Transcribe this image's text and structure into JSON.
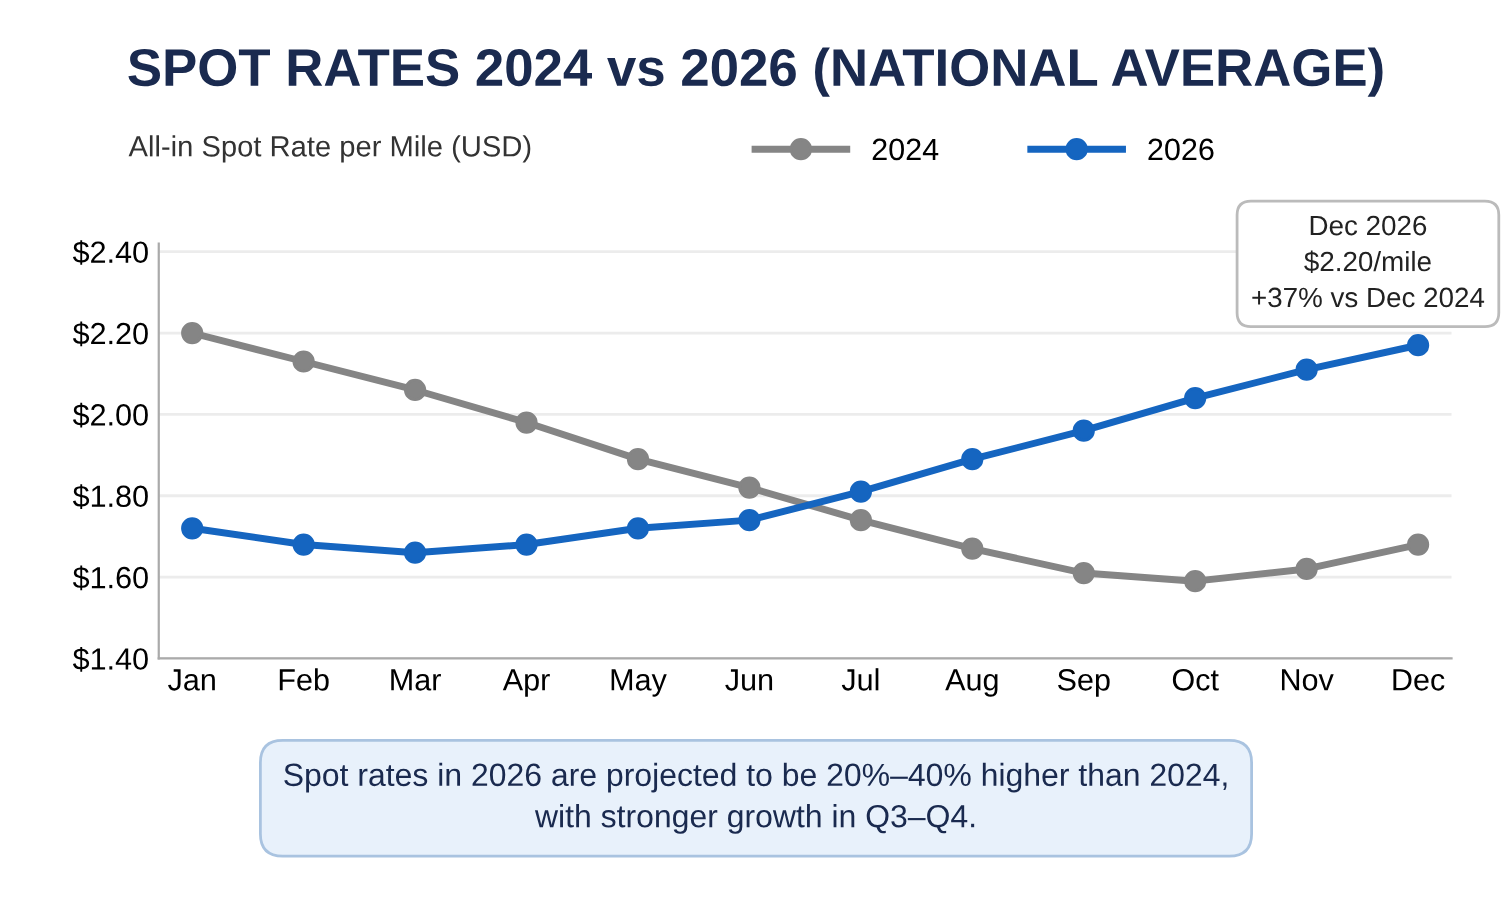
{
  "chart_data": {
    "type": "line",
    "title": "SPOT RATES 2024 vs 2026 (NATIONAL AVERAGE)",
    "ylabel": "All-in Spot Rate per Mile (USD)",
    "categories": [
      "Jan",
      "Feb",
      "Mar",
      "Apr",
      "May",
      "Jun",
      "Jul",
      "Aug",
      "Sep",
      "Oct",
      "Nov",
      "Dec"
    ],
    "series": [
      {
        "name": "2024",
        "color": "#858585",
        "values": [
          2.2,
          2.13,
          2.06,
          1.98,
          1.89,
          1.82,
          1.74,
          1.67,
          1.61,
          1.59,
          1.62,
          1.68
        ]
      },
      {
        "name": "2026",
        "color": "#1565c0",
        "values": [
          1.72,
          1.68,
          1.66,
          1.68,
          1.72,
          1.74,
          1.81,
          1.89,
          1.96,
          2.04,
          2.11,
          2.17
        ]
      }
    ],
    "ylim": [
      1.4,
      2.42
    ],
    "yticks": [
      {
        "value": 1.4,
        "label": "$1.40"
      },
      {
        "value": 1.6,
        "label": "$1.60"
      },
      {
        "value": 1.8,
        "label": "$1.80"
      },
      {
        "value": 2.0,
        "label": "$2.00"
      },
      {
        "value": 2.2,
        "label": "$2.20"
      },
      {
        "value": 2.4,
        "label": "$2.40"
      }
    ],
    "annotations": [
      {
        "text": "Dec 2026\n$2.20/mile\n+37% vs Dec 2024",
        "x": "Dec",
        "y": 2.17
      },
      "Spot rates in 2026 are projected to be 20%–40% higher than 2024,\nwith stronger growth in Q3–Q4."
    ],
    "grid": "y",
    "legend": "top",
    "marker": "circle",
    "line_style": "solid"
  }
}
